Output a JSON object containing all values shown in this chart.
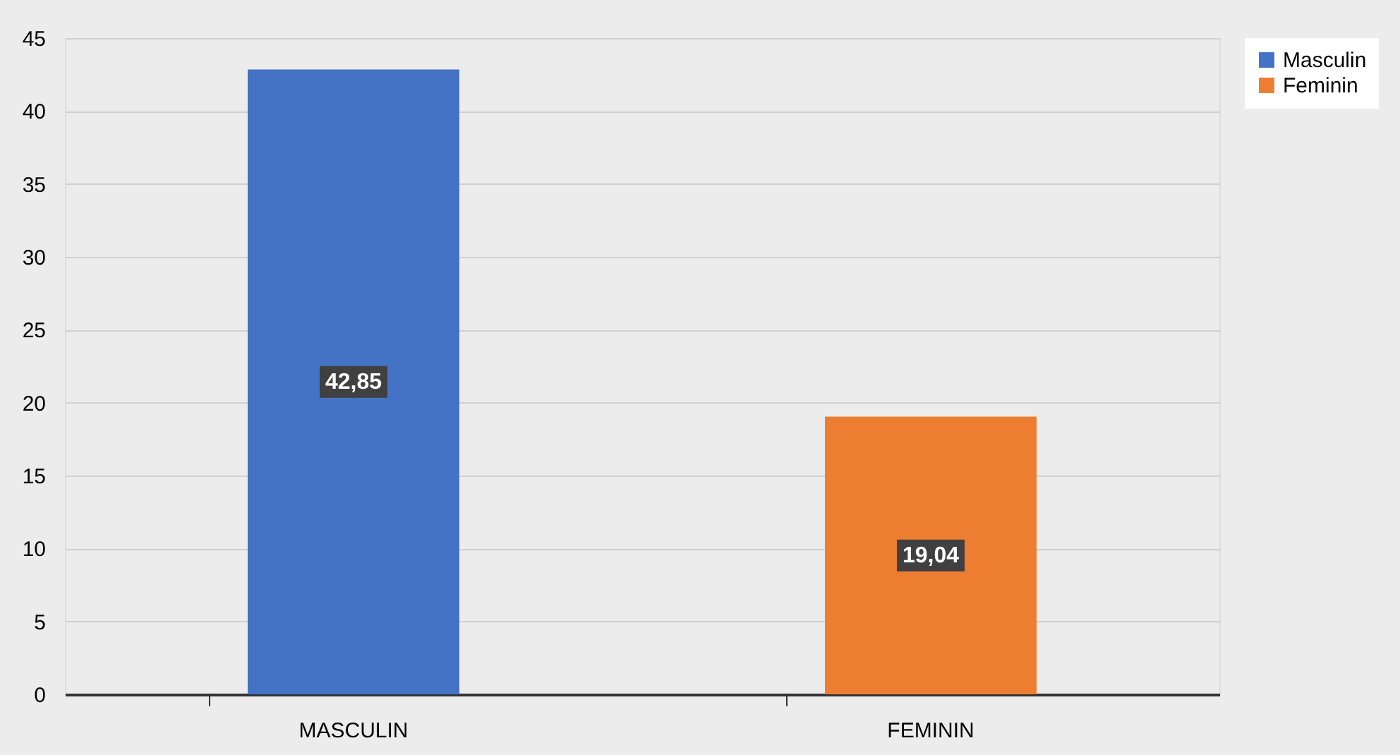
{
  "chart_data": {
    "type": "bar",
    "categories": [
      "MASCULIN",
      "FEMININ"
    ],
    "series": [
      {
        "name": "Masculin",
        "color": "#4472c4",
        "values": [
          42.85,
          null
        ],
        "value_labels": [
          "42,85",
          null
        ]
      },
      {
        "name": "Feminin",
        "color": "#ed7d31",
        "values": [
          null,
          19.04
        ],
        "value_labels": [
          null,
          "19,04"
        ]
      }
    ],
    "ylim": [
      0,
      45
    ],
    "yticks": [
      0,
      5,
      10,
      15,
      20,
      25,
      30,
      35,
      40,
      45
    ],
    "grid": "y",
    "legend": "right"
  }
}
